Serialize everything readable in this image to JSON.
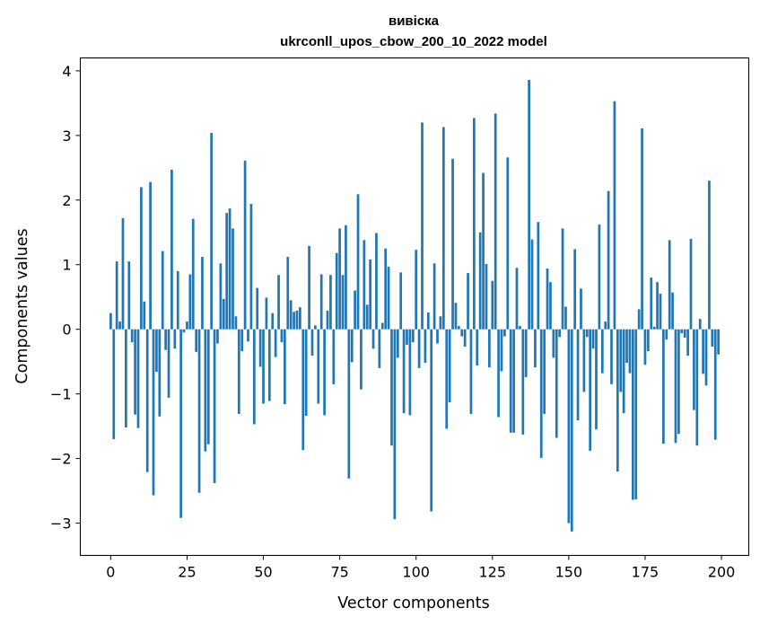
{
  "chart_data": {
    "type": "bar",
    "title": "вивіска",
    "subtitle": "ukrconll_upos_cbow_200_10_2022 model",
    "xlabel": "Vector components",
    "ylabel": "Components values",
    "xlim": [
      -9.95,
      208.95
    ],
    "ylim": [
      -3.5,
      4.2
    ],
    "xticks": [
      0,
      25,
      50,
      75,
      100,
      125,
      150,
      175,
      200
    ],
    "yticks": [
      -3,
      -2,
      -1,
      0,
      1,
      2,
      3,
      4
    ],
    "bar_color": "#1f77b4",
    "grid": false,
    "legend": "none",
    "x": [
      0,
      1,
      2,
      3,
      4,
      5,
      6,
      7,
      8,
      9,
      10,
      11,
      12,
      13,
      14,
      15,
      16,
      17,
      18,
      19,
      20,
      21,
      22,
      23,
      24,
      25,
      26,
      27,
      28,
      29,
      30,
      31,
      32,
      33,
      34,
      35,
      36,
      37,
      38,
      39,
      40,
      41,
      42,
      43,
      44,
      45,
      46,
      47,
      48,
      49,
      50,
      51,
      52,
      53,
      54,
      55,
      56,
      57,
      58,
      59,
      60,
      61,
      62,
      63,
      64,
      65,
      66,
      67,
      68,
      69,
      70,
      71,
      72,
      73,
      74,
      75,
      76,
      77,
      78,
      79,
      80,
      81,
      82,
      83,
      84,
      85,
      86,
      87,
      88,
      89,
      90,
      91,
      92,
      93,
      94,
      95,
      96,
      97,
      98,
      99,
      100,
      101,
      102,
      103,
      104,
      105,
      106,
      107,
      108,
      109,
      110,
      111,
      112,
      113,
      114,
      115,
      116,
      117,
      118,
      119,
      120,
      121,
      122,
      123,
      124,
      125,
      126,
      127,
      128,
      129,
      130,
      131,
      132,
      133,
      134,
      135,
      136,
      137,
      138,
      139,
      140,
      141,
      142,
      143,
      144,
      145,
      146,
      147,
      148,
      149,
      150,
      151,
      152,
      153,
      154,
      155,
      156,
      157,
      158,
      159,
      160,
      161,
      162,
      163,
      164,
      165,
      166,
      167,
      168,
      169,
      170,
      171,
      172,
      173,
      174,
      175,
      176,
      177,
      178,
      179,
      180,
      181,
      182,
      183,
      184,
      185,
      186,
      187,
      188,
      189,
      190,
      191,
      192,
      193,
      194,
      195,
      196,
      197,
      198,
      199
    ],
    "values": [
      0.25,
      -1.7,
      1.05,
      0.12,
      1.72,
      -1.52,
      1.05,
      -0.2,
      -1.32,
      -1.53,
      2.2,
      0.43,
      -2.21,
      2.28,
      -2.57,
      -0.66,
      -1.35,
      1.21,
      -0.32,
      -1.06,
      2.47,
      -0.3,
      0.9,
      -2.92,
      -0.05,
      0.12,
      0.85,
      1.71,
      -0.35,
      -2.53,
      1.12,
      -1.89,
      -1.78,
      3.04,
      -2.38,
      -0.22,
      1.02,
      0.47,
      1.8,
      1.87,
      1.56,
      0.2,
      -1.31,
      -0.34,
      2.61,
      -0.19,
      1.94,
      -1.47,
      0.64,
      -0.58,
      -1.15,
      0.49,
      -1.11,
      0.25,
      -0.43,
      0.84,
      -0.2,
      -1.16,
      1.12,
      0.45,
      0.27,
      0.29,
      0.34,
      -1.87,
      -1.34,
      1.29,
      -0.41,
      0.06,
      -1.15,
      0.85,
      -1.33,
      0.29,
      0.84,
      -0.85,
      1.18,
      1.56,
      0.84,
      1.61,
      -2.31,
      -0.51,
      0.6,
      2.09,
      -0.93,
      1.38,
      0.38,
      1.08,
      -0.3,
      1.49,
      -0.6,
      0.1,
      1.25,
      0.97,
      -1.8,
      -2.94,
      -0.44,
      0.88,
      -1.3,
      -0.24,
      -1.33,
      -0.2,
      1.23,
      -0.6,
      3.2,
      -0.52,
      0.26,
      -2.82,
      1.02,
      -0.22,
      0.2,
      3.13,
      -1.54,
      -1.13,
      2.64,
      0.41,
      0.05,
      -0.11,
      -0.27,
      0.87,
      -1.31,
      3.27,
      -0.56,
      1.5,
      2.42,
      1.01,
      -0.59,
      0.75,
      3.34,
      -1.36,
      -0.65,
      -0.11,
      2.66,
      -1.6,
      -1.6,
      0.95,
      0.05,
      -1.63,
      -0.74,
      3.86,
      1.39,
      -0.59,
      1.66,
      -1.99,
      -1.31,
      0.94,
      0.73,
      -0.44,
      -1.68,
      -0.12,
      1.56,
      0.35,
      -3.0,
      -3.13,
      1.24,
      -1.41,
      0.63,
      -0.97,
      -0.12,
      -1.88,
      -0.3,
      -1.55,
      1.62,
      -0.68,
      0.12,
      2.14,
      -0.85,
      3.53,
      -2.2,
      -0.97,
      -1.3,
      -0.52,
      -0.68,
      -2.64,
      -2.63,
      0.31,
      3.11,
      -0.55,
      -0.34,
      0.8,
      0.04,
      0.73,
      0.55,
      -1.77,
      -0.16,
      1.38,
      0.57,
      -1.76,
      -1.62,
      -0.06,
      -0.13,
      -0.41,
      1.4,
      -1.25,
      -1.8,
      0.16,
      -0.69,
      -0.87,
      2.3,
      -0.27,
      -1.71,
      -0.39
    ]
  }
}
